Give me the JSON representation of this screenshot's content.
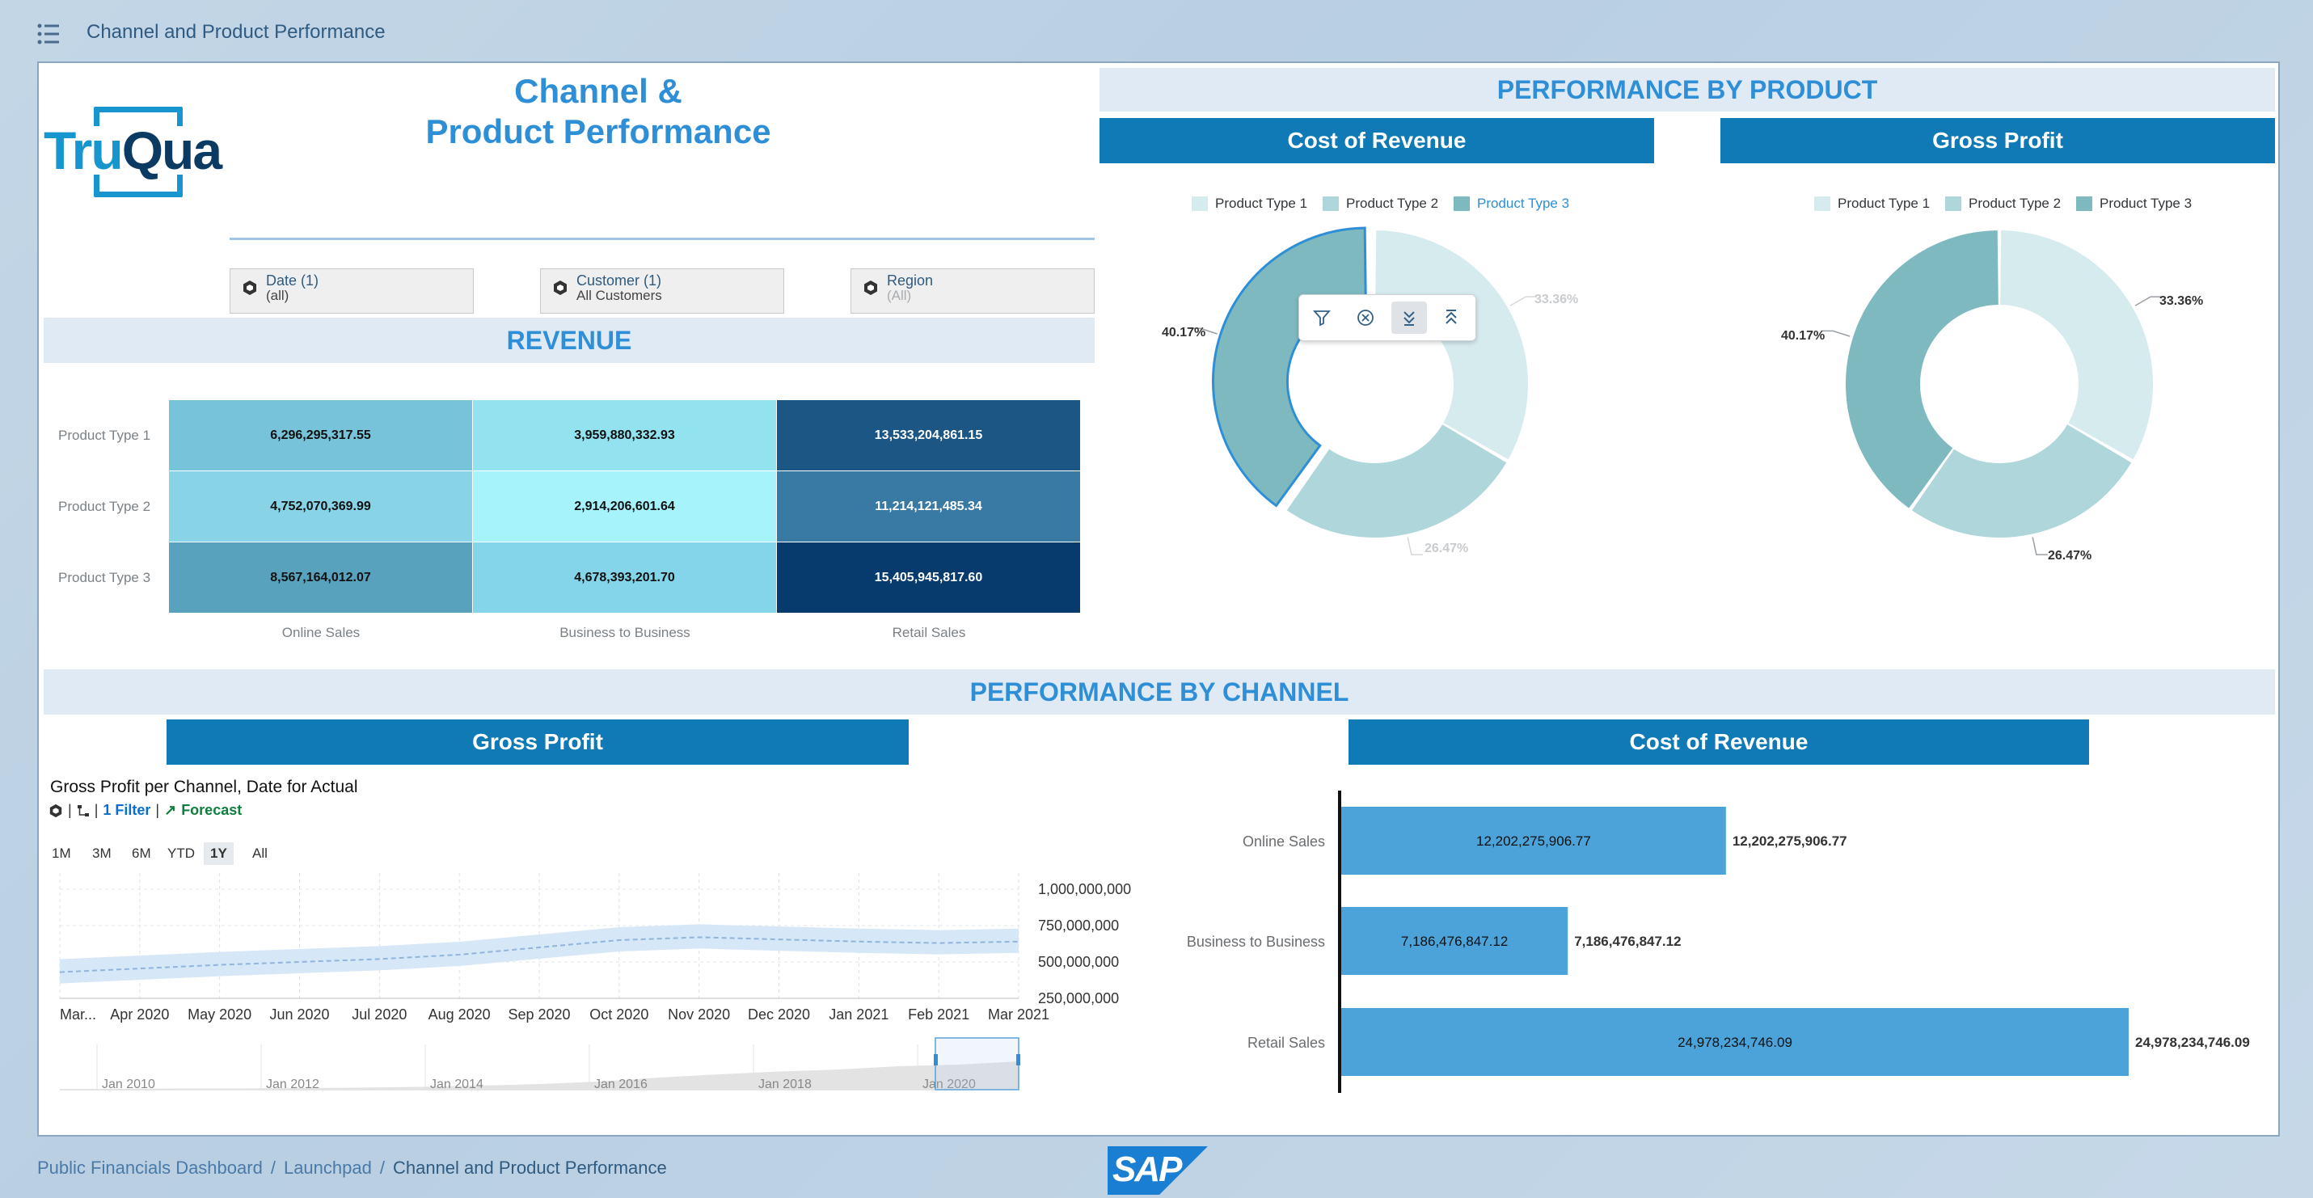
{
  "shell": {
    "title": "Channel and Product Performance"
  },
  "header": {
    "title_line1": "Channel &",
    "title_line2": "Product Performance",
    "logo_text_1": "Tru",
    "logo_text_2": "Qua"
  },
  "filters": [
    {
      "title": "Date (1)",
      "value": "(all)"
    },
    {
      "title": "Customer (1)",
      "value": "All Customers"
    },
    {
      "title": "Region",
      "value": "(All)"
    }
  ],
  "revenue": {
    "title": "REVENUE",
    "chart_data": {
      "type": "heatmap",
      "rows": [
        "Product Type 1",
        "Product Type 2",
        "Product Type 3"
      ],
      "columns": [
        "Online Sales",
        "Business to Business",
        "Retail Sales"
      ],
      "values": [
        [
          "6,296,295,317.55",
          "3,959,880,332.93",
          "13,533,204,861.15"
        ],
        [
          "4,752,070,369.99",
          "2,914,206,601.64",
          "11,214,121,485.34"
        ],
        [
          "8,567,164,012.07",
          "4,678,393,201.70",
          "15,405,945,817.60"
        ]
      ],
      "colors": [
        [
          "#77c3da",
          "#93e2f0",
          "#1b5685"
        ],
        [
          "#88d4e6",
          "#a6f3fb",
          "#397aa4"
        ],
        [
          "#58a2bd",
          "#85d5ea",
          "#073b6d"
        ]
      ],
      "text_colors": [
        [
          "#111111",
          "#111111",
          "#ffffff"
        ],
        [
          "#111111",
          "#111111",
          "#ffffff"
        ],
        [
          "#111111",
          "#111111",
          "#ffffff"
        ]
      ]
    }
  },
  "product_section": {
    "title": "PERFORMANCE BY PRODUCT",
    "cost_of_revenue": {
      "header": "Cost of Revenue",
      "legend": [
        "Product Type 1",
        "Product Type 2",
        "Product Type 3"
      ],
      "chart_data": {
        "type": "pie",
        "labels": [
          "Product Type 1",
          "Product Type 2",
          "Product Type 3"
        ],
        "values": [
          33.36,
          26.47,
          40.17
        ],
        "value_labels": [
          "33.36%",
          "26.47%",
          "40.17%"
        ],
        "colors": [
          "#d6ebee",
          "#afd6db",
          "#7fb9c0"
        ],
        "selected": "Product Type 3"
      },
      "toolbar_icons": [
        "filter-icon",
        "exclude-icon",
        "drill-down-icon",
        "drill-up-icon"
      ]
    },
    "gross_profit": {
      "header": "Gross Profit",
      "legend": [
        "Product Type 1",
        "Product Type 2",
        "Product Type 3"
      ],
      "chart_data": {
        "type": "pie",
        "labels": [
          "Product Type 1",
          "Product Type 2",
          "Product Type 3"
        ],
        "values": [
          33.36,
          26.47,
          40.17
        ],
        "value_labels": [
          "33.36%",
          "26.47%",
          "40.17%"
        ],
        "colors": [
          "#d6ebee",
          "#afd6db",
          "#7fb9c0"
        ]
      }
    }
  },
  "channel_section": {
    "title": "PERFORMANCE BY CHANNEL",
    "gross_profit": {
      "header": "Gross Profit",
      "chart_title": "Gross Profit per Channel, Date for Actual",
      "filter_label": "1 Filter",
      "forecast_label": "Forecast",
      "time_buttons": [
        "1M",
        "3M",
        "6M",
        "YTD",
        "1Y",
        "All"
      ],
      "active_time": "1Y",
      "chart_data": {
        "type": "line",
        "x": [
          "Mar...",
          "Apr 2020",
          "May 2020",
          "Jun 2020",
          "Jul 2020",
          "Aug 2020",
          "Sep 2020",
          "Oct 2020",
          "Nov 2020",
          "Dec 2020",
          "Jan 2021",
          "Feb 2021",
          "Mar 2021"
        ],
        "y_ticks": [
          "1,000,000,000",
          "750,000,000",
          "500,000,000",
          "250,000,000"
        ],
        "ylim": [
          250000000,
          1000000000
        ],
        "series": [
          {
            "values": [
              430000000,
              455000000,
              480000000,
              500000000,
              520000000,
              550000000,
              600000000,
              650000000,
              670000000,
              655000000,
              640000000,
              630000000,
              640000000
            ]
          }
        ],
        "navigator_labels": [
          "Jan 2010",
          "Jan 2012",
          "Jan 2014",
          "Jan 2016",
          "Jan 2018",
          "Jan 2020"
        ]
      }
    },
    "cost_of_revenue": {
      "header": "Cost of Revenue",
      "chart_data": {
        "type": "bar",
        "categories": [
          "Online Sales",
          "Business to Business",
          "Retail Sales"
        ],
        "values": [
          12202275906.77,
          7186476847.12,
          24978234746.09
        ],
        "value_labels": [
          "12,202,275,906.77",
          "7,186,476,847.12",
          "24,978,234,746.09"
        ],
        "color": "#4ba3d9"
      }
    }
  },
  "footer": {
    "breadcrumbs": [
      "Public Financials Dashboard",
      "Launchpad",
      "Channel and Product Performance"
    ],
    "separator": "/",
    "logo_text": "SAP"
  }
}
